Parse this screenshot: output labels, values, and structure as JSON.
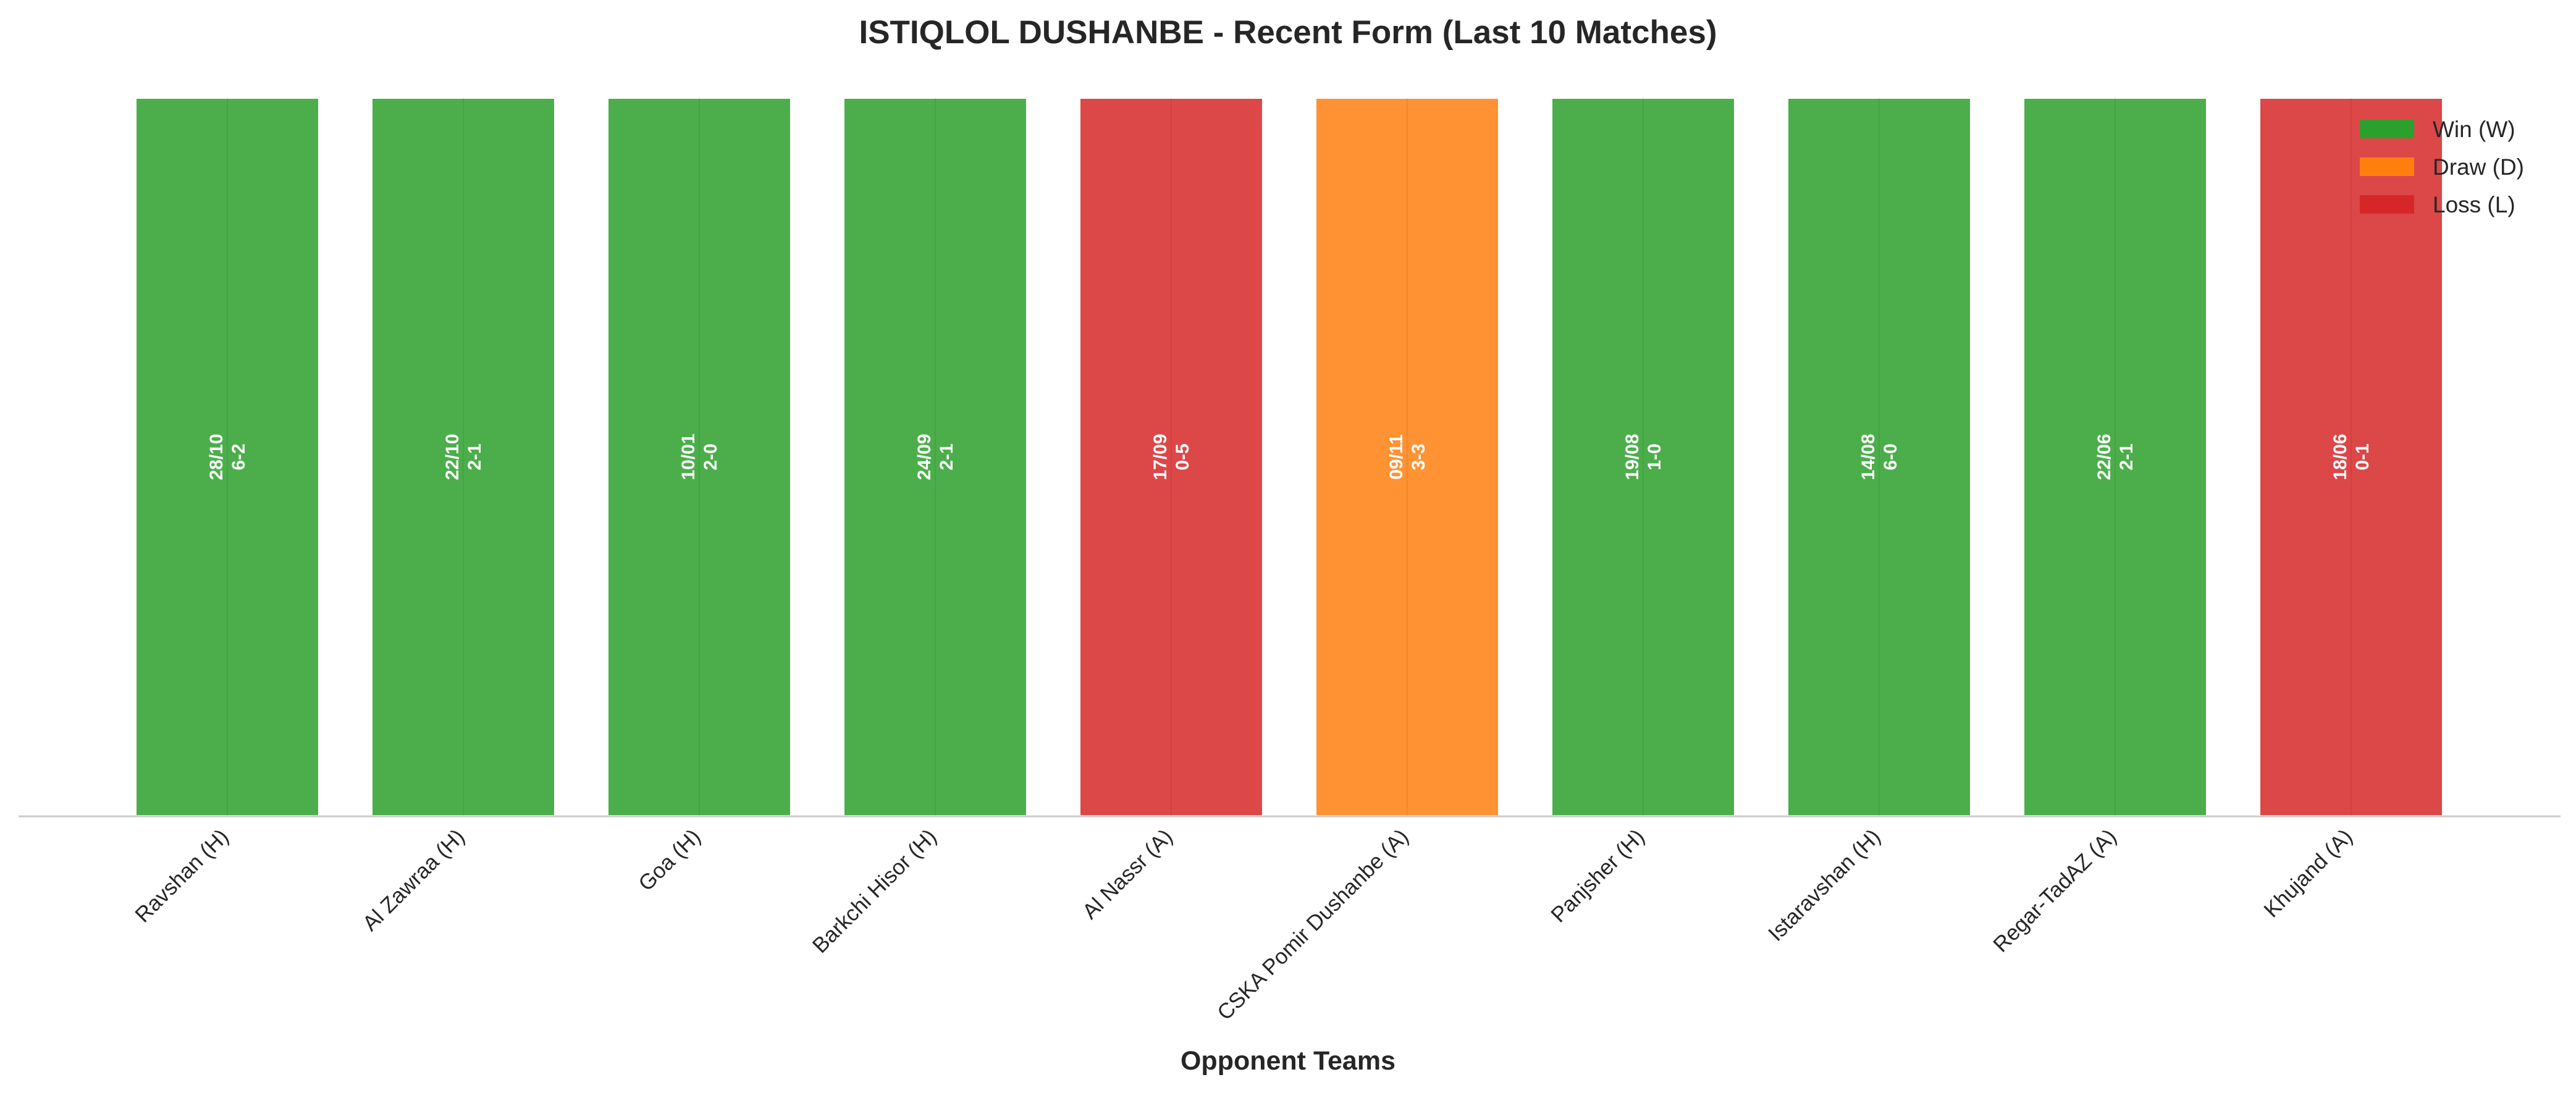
{
  "chart_data": {
    "type": "bar",
    "title": "ISTIQLOL DUSHANBE - Recent Form (Last 10 Matches)",
    "xlabel": "Opponent Teams",
    "ylabel": "",
    "categories": [
      "Ravshan (H)",
      "Al Zawraa (H)",
      "Goa (H)",
      "Barkchi Hisor (H)",
      "Al Nassr (A)",
      "CSKA Pomir Dushanbe (A)",
      "Panjsher (H)",
      "Istaravshan (H)",
      "Regar-TadAZ (A)",
      "Khujand (A)"
    ],
    "values": [
      1,
      1,
      1,
      1,
      1,
      1,
      1,
      1,
      1,
      1
    ],
    "results": [
      "W",
      "W",
      "W",
      "W",
      "L",
      "D",
      "W",
      "W",
      "W",
      "L"
    ],
    "dates": [
      "28/10",
      "22/10",
      "10/01",
      "24/09",
      "17/09",
      "09/11",
      "19/08",
      "14/08",
      "22/06",
      "18/06"
    ],
    "scores": [
      "6-2",
      "2-1",
      "2-0",
      "2-1",
      "0-5",
      "3-3",
      "1-0",
      "6-0",
      "2-1",
      "0-1"
    ],
    "ylim": [
      0,
      1
    ],
    "grid": false,
    "legend": {
      "position": "top-right",
      "entries": [
        {
          "key": "W",
          "label": "Win (W)",
          "color": "#2ca02c"
        },
        {
          "key": "D",
          "label": "Draw (D)",
          "color": "#ff7f0e"
        },
        {
          "key": "L",
          "label": "Loss (L)",
          "color": "#d62728"
        }
      ]
    },
    "colors": {
      "W": "#2ca02c",
      "D": "#ff7f0e",
      "L": "#d62728"
    },
    "bar_alpha": 0.85
  }
}
